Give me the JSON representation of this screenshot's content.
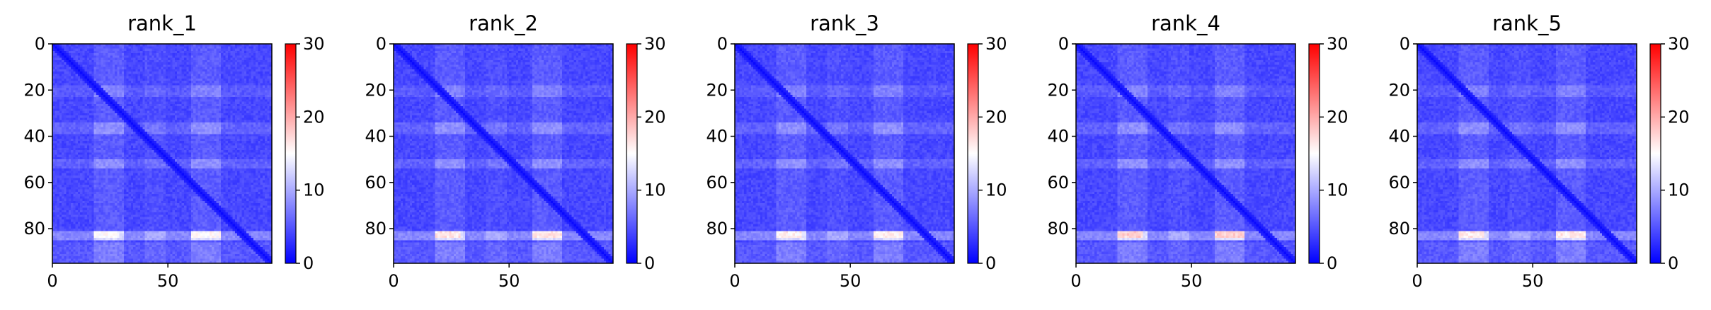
{
  "chart_data": {
    "type": "heatmap",
    "colormap": "bwr",
    "colors": {
      "low": "#0000ff",
      "mid": "#ffffff",
      "high": "#ff0000"
    },
    "vmin": 0,
    "vmax": 30,
    "n": 95,
    "xlim": [
      0,
      95
    ],
    "ylim": [
      95,
      0
    ],
    "xticks": [
      0,
      50
    ],
    "yticks": [
      0,
      20,
      40,
      60,
      80
    ],
    "colorbar_ticks": [
      0,
      10,
      20,
      30
    ],
    "grid": false,
    "panels": [
      {
        "title": "rank_1",
        "seed": 11,
        "hotspot": 0.0
      },
      {
        "title": "rank_2",
        "seed": 23,
        "hotspot": 0.25
      },
      {
        "title": "rank_3",
        "seed": 37,
        "hotspot": 0.15
      },
      {
        "title": "rank_4",
        "seed": 41,
        "hotspot": 0.45
      },
      {
        "title": "rank_5",
        "seed": 53,
        "hotspot": 0.2
      }
    ]
  }
}
